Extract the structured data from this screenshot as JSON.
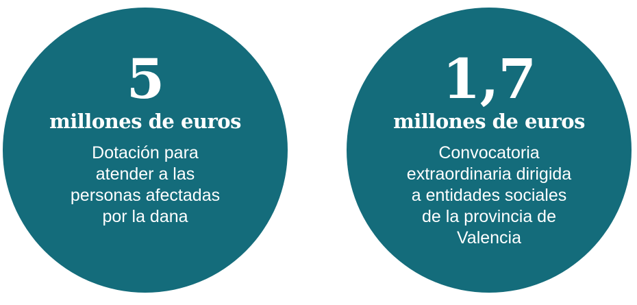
{
  "colors": {
    "circle": "#146c7b",
    "text": "#ffffff",
    "background": "#ffffff"
  },
  "stats": [
    {
      "value": "5",
      "unit": "millones de euros",
      "description_lines": [
        "Dotación para",
        "atender a las",
        "personas afectadas",
        "por la dana"
      ]
    },
    {
      "value": "1,7",
      "unit": "millones de euros",
      "description_lines": [
        "Convocatoria",
        "extraordinaria dirigida",
        "a entidades sociales",
        "de la provincia de",
        "Valencia"
      ]
    }
  ]
}
